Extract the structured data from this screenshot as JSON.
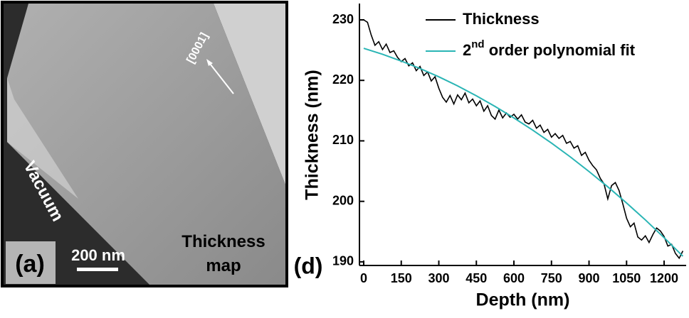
{
  "panel_a": {
    "label": "(a)",
    "scale_bar": "200 nm",
    "caption": "Thickness map",
    "region": "Vacuum",
    "direction": "[0001]"
  },
  "chart_data": {
    "type": "line",
    "panel_label": "(d)",
    "xlabel": "Depth (nm)",
    "ylabel": "Thickness (nm)",
    "xlim": [
      -17,
      1288
    ],
    "ylim": [
      189.4,
      232.7
    ],
    "xticks": [
      0,
      150,
      300,
      450,
      600,
      750,
      900,
      1050,
      1200
    ],
    "yticks": [
      190,
      200,
      210,
      220,
      230
    ],
    "legend": "top-left",
    "series": [
      {
        "name": "Thickness",
        "color": "#000000",
        "x": [
          0,
          15,
          30,
          45,
          60,
          75,
          90,
          105,
          120,
          135,
          150,
          165,
          180,
          195,
          210,
          225,
          240,
          255,
          270,
          285,
          300,
          315,
          330,
          345,
          360,
          375,
          390,
          405,
          420,
          435,
          450,
          465,
          480,
          495,
          510,
          525,
          540,
          555,
          570,
          585,
          600,
          615,
          630,
          645,
          660,
          675,
          690,
          705,
          720,
          735,
          750,
          765,
          780,
          795,
          810,
          825,
          840,
          855,
          870,
          885,
          900,
          915,
          930,
          945,
          960,
          975,
          990,
          1005,
          1020,
          1035,
          1050,
          1065,
          1080,
          1095,
          1110,
          1125,
          1140,
          1155,
          1170,
          1185,
          1200,
          1215,
          1230,
          1245,
          1260,
          1275
        ],
        "values": [
          230.0,
          229.6,
          227.5,
          225.8,
          226.4,
          225.1,
          226.0,
          224.6,
          224.9,
          223.8,
          223.1,
          223.6,
          222.4,
          222.9,
          221.6,
          222.3,
          220.8,
          221.4,
          219.9,
          220.6,
          218.7,
          217.2,
          216.4,
          217.5,
          216.1,
          217.6,
          216.8,
          217.9,
          216.3,
          216.9,
          215.8,
          216.6,
          214.9,
          215.8,
          214.2,
          213.6,
          215.1,
          213.8,
          214.6,
          213.9,
          214.4,
          213.6,
          214.3,
          213.1,
          212.8,
          213.4,
          212.1,
          212.6,
          211.4,
          211.9,
          210.6,
          211.2,
          210.4,
          210.9,
          209.6,
          209.9,
          208.8,
          209.2,
          207.6,
          208.1,
          206.8,
          205.9,
          205.2,
          203.8,
          202.9,
          200.4,
          202.6,
          203.1,
          201.8,
          199.6,
          197.2,
          195.8,
          196.4,
          194.1,
          193.6,
          194.3,
          193.2,
          194.5,
          195.6,
          195.1,
          194.2,
          192.6,
          192.9,
          191.4,
          190.6,
          191.8
        ]
      },
      {
        "name": "2nd order polynomial fit",
        "color": "#2ab5b5",
        "x": [
          0,
          75,
          150,
          225,
          300,
          375,
          450,
          525,
          600,
          675,
          750,
          825,
          900,
          975,
          1050,
          1125,
          1200,
          1275
        ],
        "values": [
          225.3,
          224.32,
          223.2,
          221.96,
          220.59,
          219.09,
          217.45,
          215.69,
          213.8,
          211.78,
          209.63,
          207.35,
          204.94,
          202.4,
          199.73,
          196.93,
          194.0,
          190.94
        ]
      }
    ]
  }
}
